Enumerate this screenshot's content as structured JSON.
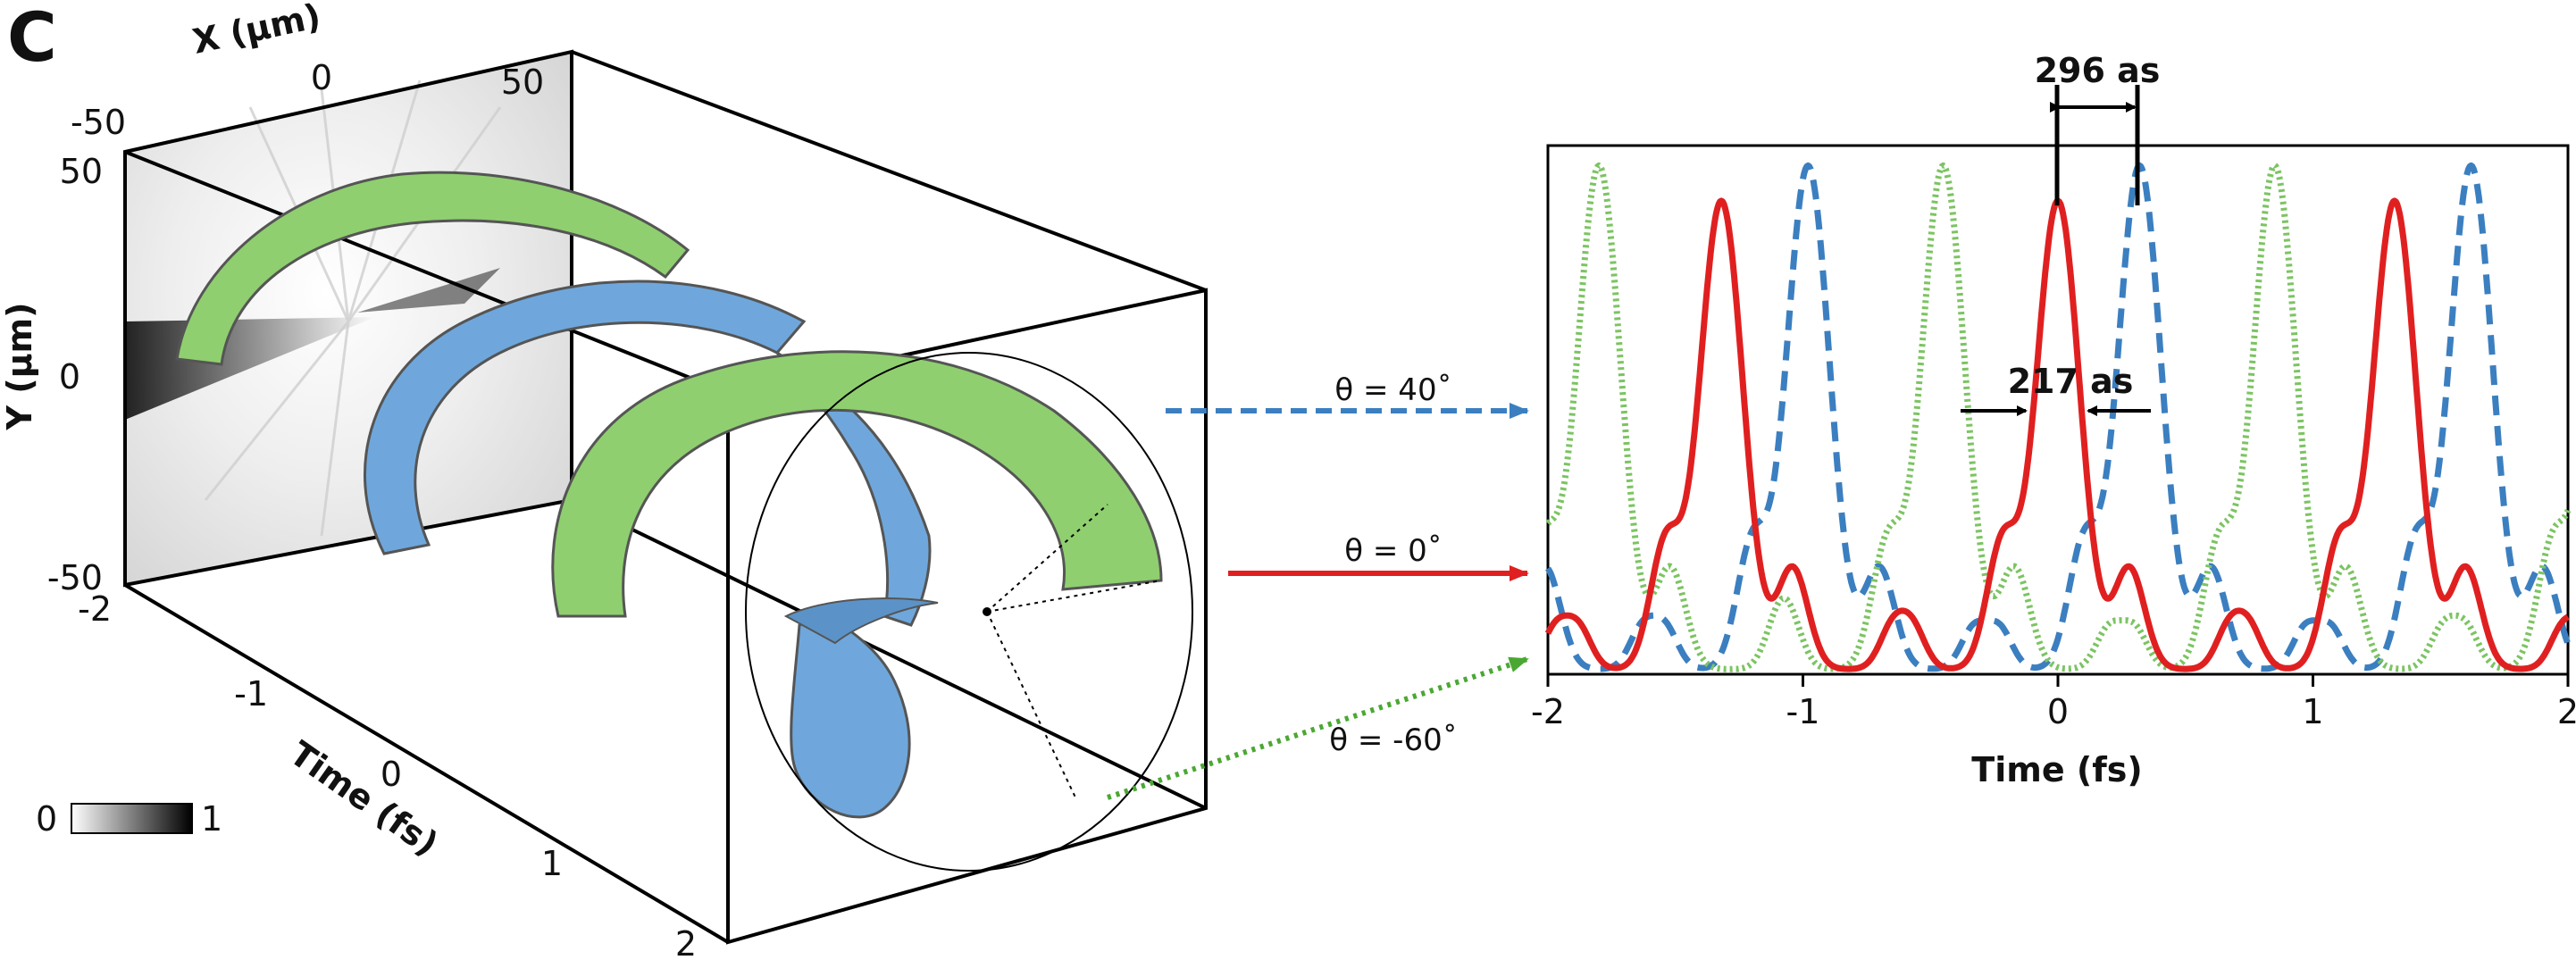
{
  "panel_label": "C",
  "left_3d": {
    "x_axis_label": "X (μm)",
    "x_ticks": [
      "-50",
      "0",
      "50"
    ],
    "y_axis_label": "Y (μm)",
    "y_ticks": [
      "50",
      "0",
      "-50"
    ],
    "t_axis_label": "Time (fs)",
    "t_ticks": [
      "-2",
      "-1",
      "0",
      "1",
      "2"
    ],
    "colorbar": {
      "min_label": "0",
      "max_label": "1"
    },
    "colors": {
      "green_helix": "#8fcf6f",
      "blue_helix": "#6fa7dc"
    }
  },
  "arrows": [
    {
      "label": "θ = 40˚",
      "style": "dashed",
      "color": "#3b7fc0"
    },
    {
      "label": "θ = 0˚",
      "style": "solid",
      "color": "#e02020"
    },
    {
      "label": "θ = -60˚",
      "style": "dotted",
      "color": "#4aa832"
    }
  ],
  "chart_data": {
    "type": "line",
    "xlabel": "Time (fs)",
    "x_ticks": [
      "-2",
      "-1",
      "0",
      "1",
      "2"
    ],
    "xlim": [
      -2,
      2
    ],
    "ylim": [
      0,
      1.05
    ],
    "grid": false,
    "annotations": [
      {
        "text": "296 as",
        "from_x": 0,
        "to_x": 0.296
      },
      {
        "text": "217 as",
        "from_x": -0.11,
        "to_x": 0.11
      }
    ],
    "series": [
      {
        "id": "theta40",
        "color": "#3b7fc0",
        "style": "dashed",
        "peak_times": [
          -0.98,
          0.32,
          1.62
        ],
        "peak_height": 1.0
      },
      {
        "id": "theta0",
        "color": "#e02020",
        "style": "solid",
        "peak_times": [
          -1.32,
          0.0,
          1.32
        ],
        "peak_height": 0.93
      },
      {
        "id": "theta_minus60",
        "color": "#7cc462",
        "style": "dotted",
        "peak_times": [
          -1.8,
          -0.45,
          0.85
        ],
        "peak_height": 1.0
      }
    ]
  }
}
